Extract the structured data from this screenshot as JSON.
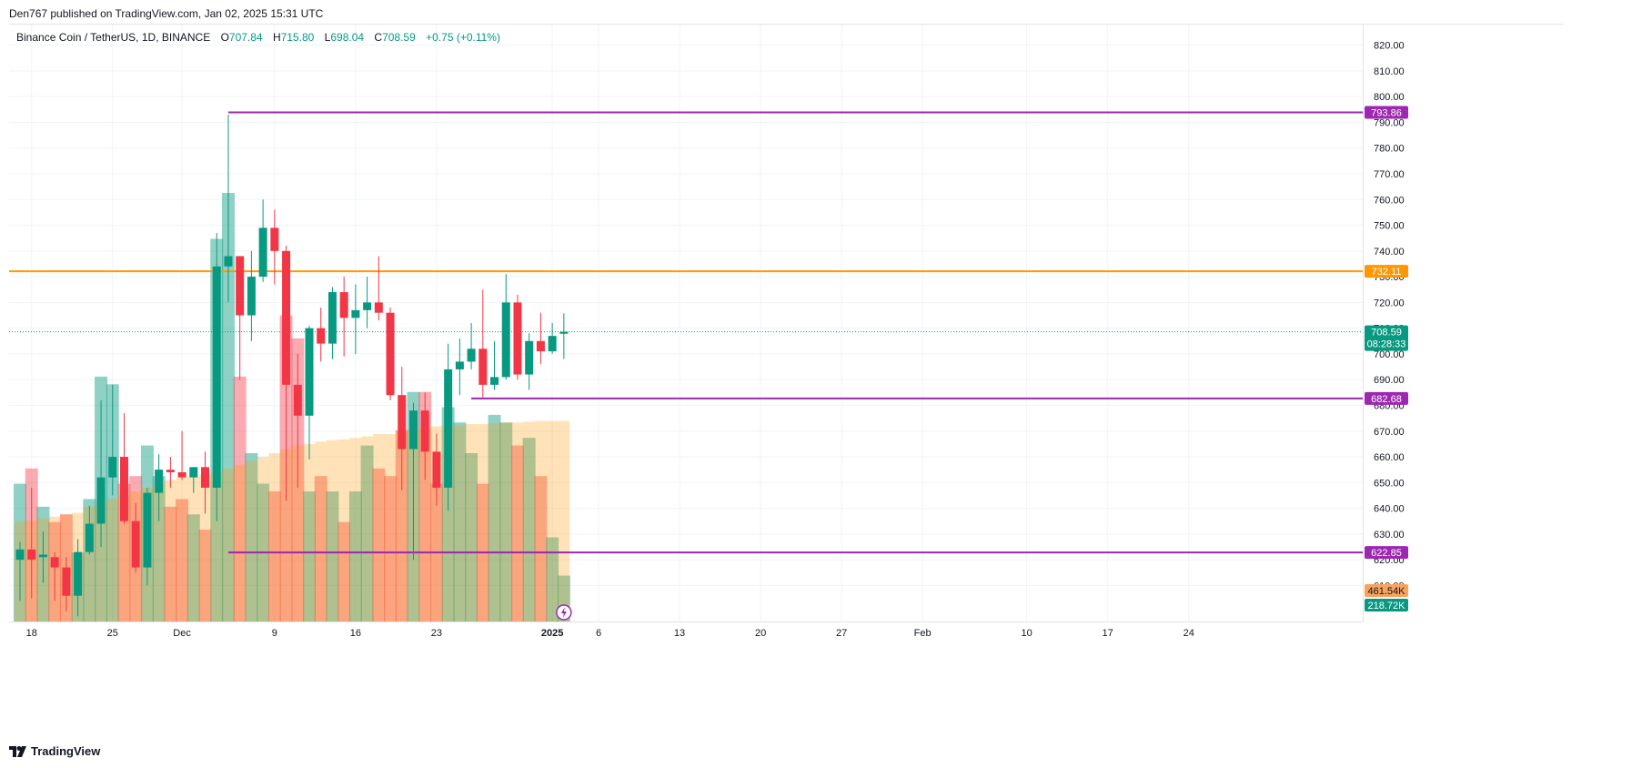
{
  "attribution": "Den767 published on TradingView.com, Jan 02, 2025 15:31 UTC",
  "legend": {
    "symbol": "Binance Coin / TetherUS, 1D, BINANCE",
    "open_label": "O",
    "open": "707.84",
    "high_label": "H",
    "high": "715.80",
    "low_label": "L",
    "low": "698.04",
    "close_label": "C",
    "close": "708.59",
    "change": "+0.75 (+0.11%)"
  },
  "footer": {
    "brand": "TradingView"
  },
  "colors": {
    "up": "#089981",
    "down": "#f23645",
    "level_purple": "#9c27b0",
    "level_orange": "#ff9800",
    "grid": "#f0f3fa",
    "axis_text": "#131722"
  },
  "chart_data": {
    "type": "candlestick",
    "y_range": [
      596,
      828
    ],
    "y_ticks": [
      "610.00",
      "620.00",
      "630.00",
      "640.00",
      "650.00",
      "660.00",
      "670.00",
      "680.00",
      "690.00",
      "700.00",
      "710.00",
      "720.00",
      "730.00",
      "740.00",
      "750.00",
      "760.00",
      "770.00",
      "780.00",
      "790.00",
      "800.00",
      "810.00",
      "820.00"
    ],
    "x_tick_labels": [
      {
        "label": "18",
        "index": 1
      },
      {
        "label": "25",
        "index": 8
      },
      {
        "label": "Dec",
        "index": 14
      },
      {
        "label": "9",
        "index": 22
      },
      {
        "label": "16",
        "index": 29
      },
      {
        "label": "23",
        "index": 36
      },
      {
        "label": "2025",
        "index": 46
      },
      {
        "label": "6",
        "index": 50
      },
      {
        "label": "13",
        "index": 57
      },
      {
        "label": "20",
        "index": 64
      },
      {
        "label": "27",
        "index": 71
      },
      {
        "label": "Feb",
        "index": 78
      },
      {
        "label": "10",
        "index": 87
      },
      {
        "label": "17",
        "index": 94
      },
      {
        "label": "24",
        "index": 101
      }
    ],
    "candles": [
      {
        "o": 620,
        "h": 627,
        "l": 604,
        "c": 624
      },
      {
        "o": 624,
        "h": 648,
        "l": 605,
        "c": 620
      },
      {
        "o": 621,
        "h": 631,
        "l": 611,
        "c": 622
      },
      {
        "o": 621,
        "h": 623,
        "l": 604,
        "c": 617
      },
      {
        "o": 617,
        "h": 621,
        "l": 600,
        "c": 606
      },
      {
        "o": 606,
        "h": 628,
        "l": 598,
        "c": 623
      },
      {
        "o": 623,
        "h": 641,
        "l": 622,
        "c": 634
      },
      {
        "o": 634,
        "h": 682,
        "l": 625,
        "c": 652
      },
      {
        "o": 652,
        "h": 688,
        "l": 645,
        "c": 660
      },
      {
        "o": 660,
        "h": 677,
        "l": 634,
        "c": 635
      },
      {
        "o": 635,
        "h": 642,
        "l": 615,
        "c": 617
      },
      {
        "o": 617,
        "h": 648,
        "l": 610,
        "c": 646
      },
      {
        "o": 646,
        "h": 661,
        "l": 635,
        "c": 655
      },
      {
        "o": 655,
        "h": 660,
        "l": 648,
        "c": 654
      },
      {
        "o": 654,
        "h": 670,
        "l": 651,
        "c": 652
      },
      {
        "o": 652,
        "h": 656,
        "l": 646,
        "c": 656
      },
      {
        "o": 656,
        "h": 662,
        "l": 638,
        "c": 648
      },
      {
        "o": 648,
        "h": 747,
        "l": 635,
        "c": 734
      },
      {
        "o": 734,
        "h": 793,
        "l": 720,
        "c": 738
      },
      {
        "o": 738,
        "h": 738,
        "l": 690,
        "c": 715
      },
      {
        "o": 715,
        "h": 740,
        "l": 705,
        "c": 730
      },
      {
        "o": 730,
        "h": 760,
        "l": 728,
        "c": 749
      },
      {
        "o": 749,
        "h": 756,
        "l": 727,
        "c": 740
      },
      {
        "o": 740,
        "h": 742,
        "l": 643,
        "c": 688
      },
      {
        "o": 688,
        "h": 700,
        "l": 648,
        "c": 676
      },
      {
        "o": 676,
        "h": 711,
        "l": 659,
        "c": 710
      },
      {
        "o": 710,
        "h": 718,
        "l": 697,
        "c": 704
      },
      {
        "o": 704,
        "h": 726,
        "l": 698,
        "c": 724
      },
      {
        "o": 724,
        "h": 730,
        "l": 699,
        "c": 714
      },
      {
        "o": 714,
        "h": 727,
        "l": 700,
        "c": 717
      },
      {
        "o": 717,
        "h": 730,
        "l": 710,
        "c": 720
      },
      {
        "o": 720,
        "h": 738,
        "l": 713,
        "c": 716
      },
      {
        "o": 716,
        "h": 718,
        "l": 682,
        "c": 684
      },
      {
        "o": 684,
        "h": 695,
        "l": 647,
        "c": 663
      },
      {
        "o": 663,
        "h": 681,
        "l": 620,
        "c": 678
      },
      {
        "o": 678,
        "h": 685,
        "l": 651,
        "c": 662
      },
      {
        "o": 662,
        "h": 669,
        "l": 641,
        "c": 648
      },
      {
        "o": 648,
        "h": 704,
        "l": 639,
        "c": 694
      },
      {
        "o": 694,
        "h": 706,
        "l": 684,
        "c": 697
      },
      {
        "o": 697,
        "h": 712,
        "l": 694,
        "c": 702
      },
      {
        "o": 702,
        "h": 725,
        "l": 683,
        "c": 688
      },
      {
        "o": 688,
        "h": 705,
        "l": 686,
        "c": 691
      },
      {
        "o": 691,
        "h": 731,
        "l": 690,
        "c": 720
      },
      {
        "o": 720,
        "h": 723,
        "l": 690,
        "c": 692
      },
      {
        "o": 692,
        "h": 708,
        "l": 686,
        "c": 705
      },
      {
        "o": 705,
        "h": 716,
        "l": 696,
        "c": 701
      },
      {
        "o": 701,
        "h": 712,
        "l": 700,
        "c": 707
      },
      {
        "o": 707.84,
        "h": 715.8,
        "l": 698.04,
        "c": 708.59
      }
    ],
    "volume_range": [
      0,
      780
    ],
    "volumes": [
      180,
      200,
      150,
      130,
      140,
      90,
      160,
      320,
      310,
      180,
      190,
      230,
      190,
      150,
      160,
      140,
      120,
      500,
      560,
      320,
      220,
      180,
      170,
      400,
      370,
      170,
      190,
      170,
      130,
      170,
      230,
      200,
      190,
      250,
      300,
      300,
      180,
      280,
      260,
      220,
      180,
      270,
      260,
      230,
      240,
      190,
      110,
      60
    ],
    "volume_ma": [
      130,
      132,
      135,
      137,
      140,
      142,
      150,
      155,
      160,
      165,
      170,
      175,
      180,
      185,
      188,
      190,
      192,
      195,
      200,
      205,
      210,
      215,
      220,
      225,
      230,
      232,
      235,
      237,
      238,
      240,
      242,
      245,
      245,
      248,
      250,
      252,
      255,
      255,
      256,
      258,
      258,
      259,
      260,
      260,
      261,
      262,
      262,
      262
    ],
    "levels": [
      {
        "value": 793.86,
        "label": "793.86",
        "color": "#9c27b0",
        "start_index": 18
      },
      {
        "value": 732.11,
        "label": "732.11",
        "color": "#ff9800",
        "start_index": -1
      },
      {
        "value": 682.68,
        "label": "682.68",
        "color": "#9c27b0",
        "start_index": 39
      },
      {
        "value": 622.85,
        "label": "622.85",
        "color": "#9c27b0",
        "start_index": 18
      }
    ],
    "current_price": {
      "value": 708.59,
      "label": "708.59",
      "countdown": "08:28:33",
      "color": "#089981"
    },
    "volume_badges": [
      {
        "label": "461.54K",
        "color": "#f7a35c",
        "text_color": "#131722"
      },
      {
        "label": "218.72K",
        "color": "#089981",
        "text_color": "#ffffff"
      }
    ],
    "grid": true
  }
}
